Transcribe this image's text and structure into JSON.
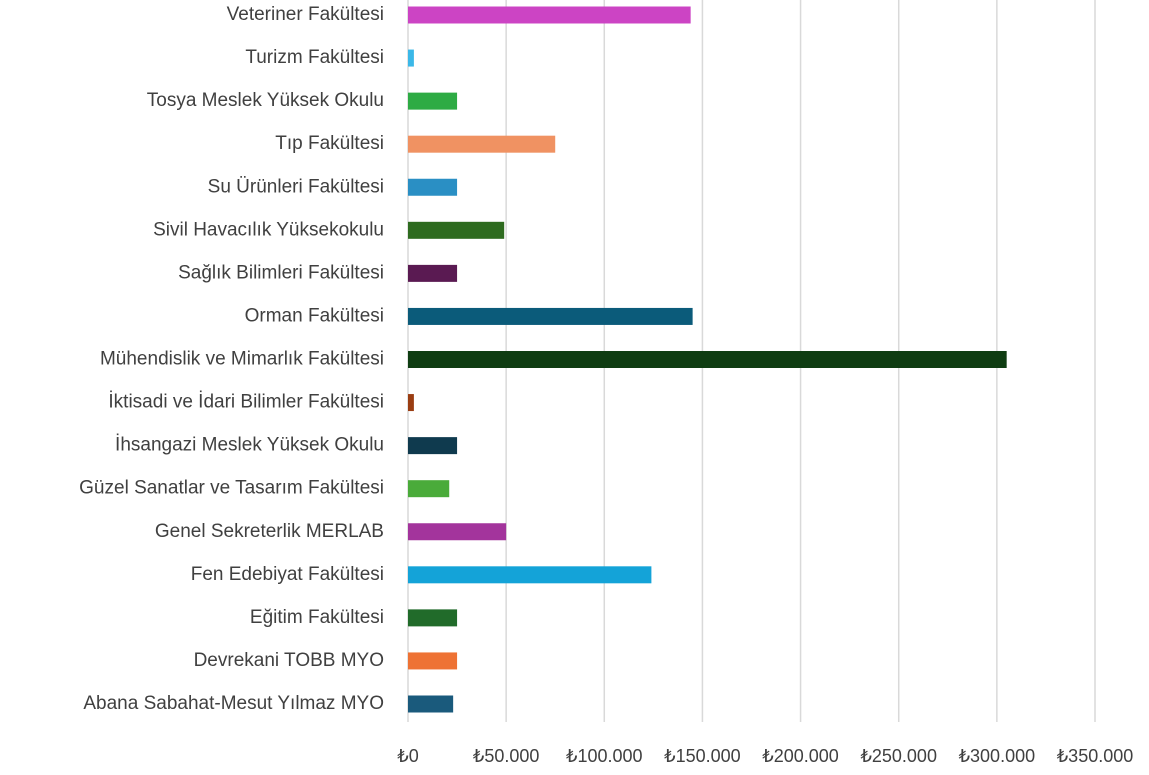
{
  "chart_data": {
    "type": "bar",
    "orientation": "horizontal",
    "categories": [
      "Abana Sabahat-Mesut Yılmaz MYO",
      "Devrekani TOBB MYO",
      "Eğitim Fakültesi",
      "Fen Edebiyat Fakültesi",
      "Genel Sekreterlik MERLAB",
      "Güzel Sanatlar ve Tasarım Fakültesi",
      "İhsangazi Meslek Yüksek Okulu",
      "İktisadi ve İdari Bilimler Fakültesi",
      "Mühendislik ve Mimarlık Fakültesi",
      "Orman Fakültesi",
      "Sağlık Bilimleri Fakültesi",
      "Sivil Havacılık Yüksekokulu",
      "Su Ürünleri Fakültesi",
      "Tıp Fakültesi",
      "Tosya Meslek Yüksek Okulu",
      "Turizm Fakültesi",
      "Veteriner Fakültesi"
    ],
    "values": [
      23000,
      25000,
      25000,
      124000,
      50000,
      21000,
      25000,
      3000,
      305000,
      145000,
      25000,
      49000,
      25000,
      75000,
      25000,
      3000,
      144000
    ],
    "colors": [
      "#1a5a7c",
      "#ee7234",
      "#216b2a",
      "#14a3d8",
      "#a3349c",
      "#4aab3a",
      "#0f3a4e",
      "#9a3d12",
      "#0f3d12",
      "#0b5b7a",
      "#5a1a52",
      "#2e6b1f",
      "#2a8fc4",
      "#f09262",
      "#2eab44",
      "#3bb8e8",
      "#cc44c4"
    ],
    "xlim": [
      0,
      350000
    ],
    "xticks": [
      {
        "value": 0,
        "label": "₺0"
      },
      {
        "value": 50000,
        "label": "₺50.000"
      },
      {
        "value": 100000,
        "label": "₺100.000"
      },
      {
        "value": 150000,
        "label": "₺150.000"
      },
      {
        "value": 200000,
        "label": "₺200.000"
      },
      {
        "value": 250000,
        "label": "₺250.000"
      },
      {
        "value": 300000,
        "label": "₺300.000"
      },
      {
        "value": 350000,
        "label": "₺350.000"
      }
    ],
    "grid": true
  }
}
